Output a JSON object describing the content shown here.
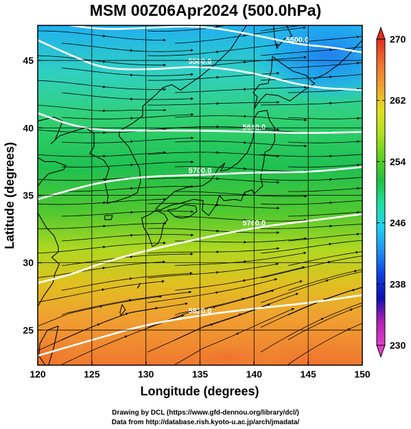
{
  "title": "MSM 00Z06Apr2024 (500.0hPa)",
  "x_axis": {
    "label": "Longitude (degrees)",
    "ticks": [
      {
        "value": 120,
        "label": "120"
      },
      {
        "value": 125,
        "label": "125"
      },
      {
        "value": 130,
        "label": "130"
      },
      {
        "value": 135,
        "label": "135"
      },
      {
        "value": 140,
        "label": "140"
      },
      {
        "value": 145,
        "label": "145"
      },
      {
        "value": 150,
        "label": "150"
      }
    ],
    "range": [
      120,
      150
    ]
  },
  "y_axis": {
    "label": "Latitude  (degrees)",
    "ticks": [
      {
        "value": 25,
        "label": "25"
      },
      {
        "value": 30,
        "label": "30"
      },
      {
        "value": 35,
        "label": "35"
      },
      {
        "value": 40,
        "label": "40"
      },
      {
        "value": 45,
        "label": "45"
      }
    ],
    "range": [
      22.4,
      47.6
    ]
  },
  "colorbar": {
    "range": [
      230,
      270
    ],
    "ticks": [
      {
        "value": 270,
        "label": "270"
      },
      {
        "value": 262,
        "label": "262"
      },
      {
        "value": 254,
        "label": "254"
      },
      {
        "value": 246,
        "label": "246"
      },
      {
        "value": 238,
        "label": "238"
      },
      {
        "value": 230,
        "label": "230"
      }
    ],
    "colors": [
      "#e040c8",
      "#b020b0",
      "#1010b0",
      "#1040e0",
      "#2090f0",
      "#20d0f0",
      "#20e0a0",
      "#20c040",
      "#60d020",
      "#b0e020",
      "#e0e020",
      "#f0a030",
      "#f07030",
      "#e03020"
    ]
  },
  "contours": [
    {
      "label": "5500.0",
      "lat": [
        47.6,
        47.3,
        47.4,
        47.6,
        46.9,
        46.2,
        46.0,
        45.6
      ],
      "lon": [
        123,
        126,
        130,
        135,
        140,
        144,
        147,
        150
      ]
    },
    {
      "label": "5580.0",
      "lat": [
        46.5,
        45.4,
        44.4,
        44.3,
        44.6,
        44.1,
        43.0,
        42.8
      ],
      "lon": [
        120,
        123,
        126,
        130,
        135,
        140,
        145,
        150
      ]
    },
    {
      "label": "5640.0",
      "lat": [
        41.1,
        40.2,
        39.8,
        39.8,
        39.8,
        39.7,
        39.6,
        39.7
      ],
      "lon": [
        120,
        123,
        126,
        130,
        135,
        140,
        145,
        150
      ]
    },
    {
      "label": "5700.0",
      "lat": [
        34.7,
        35.4,
        36.0,
        36.4,
        36.5,
        36.7,
        36.7,
        37.1
      ],
      "lon": [
        120,
        123,
        126,
        130,
        135,
        140,
        145,
        150
      ]
    },
    {
      "label": "5760.0",
      "lat": [
        28.5,
        29.1,
        30.0,
        30.9,
        31.8,
        32.6,
        33.1,
        33.6
      ],
      "lon": [
        120,
        123,
        126,
        130,
        135,
        140,
        145,
        150
      ]
    },
    {
      "label": "5820.0",
      "lat": [
        23.1,
        23.8,
        24.5,
        25.4,
        26.1,
        26.6,
        27.0,
        27.6
      ],
      "lon": [
        120,
        123,
        126,
        130,
        135,
        140,
        145,
        150
      ]
    }
  ],
  "credits": {
    "line1": "Drawing by DCL (https://www.gfd-dennou.org/library/dcl/)",
    "line2": "Data from http://database.rish.kyoto-u.ac.jp/arch/jmadata/"
  }
}
